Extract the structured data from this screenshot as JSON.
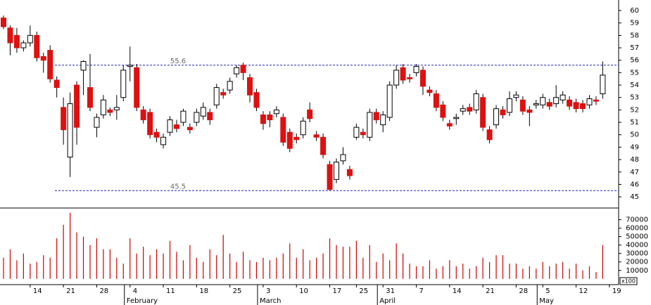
{
  "chart_data": {
    "type": "candlestick",
    "categories": [
      null,
      null,
      null,
      null,
      "14",
      null,
      null,
      null,
      null,
      "21",
      null,
      null,
      null,
      null,
      "28",
      null,
      null,
      null,
      null,
      "4",
      null,
      null,
      null,
      null,
      "11",
      null,
      null,
      null,
      null,
      "18",
      null,
      null,
      null,
      null,
      "25",
      null,
      null,
      null,
      null,
      "3",
      null,
      null,
      null,
      null,
      "10",
      null,
      null,
      null,
      null,
      "17",
      null,
      null,
      null,
      "25",
      null,
      null,
      null,
      "31",
      null,
      null,
      null,
      null,
      "7",
      null,
      null,
      null,
      null,
      "14",
      null,
      null,
      null,
      null,
      "21",
      null,
      null,
      null,
      null,
      "28",
      null,
      null,
      null,
      "5",
      null,
      null,
      null,
      null,
      "12",
      null,
      null,
      null,
      null,
      "19"
    ],
    "open": [
      59.4,
      58.6,
      58.0,
      57.0,
      57.4,
      58.0,
      56.3,
      56.8,
      54.4,
      52.2,
      48.2,
      54.0,
      55.2,
      53.8,
      50.6,
      51.6,
      52.0,
      52.0,
      53.0,
      55.5,
      55.4,
      52.0,
      51.8,
      50.2,
      49.2,
      50.2,
      50.8,
      51.0,
      50.6,
      51.0,
      51.5,
      51.8,
      52.4,
      53.4,
      53.6,
      54.9,
      55.6,
      54.6,
      53.4,
      51.6,
      51.6,
      51.7,
      51.4,
      50.2,
      49.8,
      50.0,
      52.0,
      50.0,
      49.8,
      47.6,
      46.4,
      47.9,
      47.2,
      49.8,
      50.2,
      49.8,
      51.8,
      50.8,
      51.4,
      54.0,
      55.4,
      54.6,
      55.0,
      55.2,
      53.6,
      53.3,
      52.4,
      50.9,
      51.3,
      51.9,
      52.2,
      52.0,
      53.0,
      50.4,
      50.8,
      52.0,
      51.8,
      53.0,
      52.8,
      52.0,
      52.4,
      52.4,
      52.6,
      52.5,
      52.8,
      52.8,
      52.6,
      52.5,
      52.4,
      52.8,
      53.3,
      null
    ],
    "high": [
      59.6,
      58.8,
      58.6,
      57.6,
      58.8,
      58.3,
      56.6,
      57.2,
      54.7,
      53.0,
      53.4,
      54.3,
      56.0,
      56.5,
      51.7,
      53.2,
      52.2,
      53.2,
      55.6,
      57.1,
      55.7,
      52.3,
      52.1,
      50.5,
      50.1,
      51.5,
      51.2,
      52.1,
      50.9,
      52.1,
      52.6,
      52.1,
      54.1,
      53.7,
      54.6,
      55.6,
      55.8,
      54.9,
      53.7,
      51.9,
      51.9,
      52.3,
      51.7,
      50.5,
      50.1,
      51.4,
      52.6,
      50.3,
      50.1,
      47.9,
      48.1,
      49.0,
      47.5,
      50.9,
      50.5,
      52.1,
      52.1,
      51.9,
      54.3,
      55.6,
      55.7,
      54.9,
      55.7,
      55.5,
      53.9,
      53.6,
      52.7,
      51.2,
      51.7,
      52.4,
      52.5,
      53.6,
      53.3,
      50.7,
      52.4,
      52.3,
      53.5,
      53.5,
      53.1,
      52.3,
      52.8,
      53.3,
      52.9,
      54.0,
      53.5,
      53.1,
      52.9,
      52.8,
      53.2,
      53.1,
      55.9,
      null
    ],
    "low": [
      58.5,
      56.4,
      56.6,
      56.7,
      57.1,
      55.9,
      55.0,
      54.2,
      53.0,
      49.2,
      46.6,
      49.2,
      53.2,
      51.9,
      49.8,
      51.3,
      51.5,
      51.2,
      52.7,
      54.3,
      51.9,
      50.9,
      49.7,
      49.4,
      48.9,
      49.9,
      50.2,
      50.7,
      50.1,
      50.7,
      51.2,
      50.8,
      52.1,
      52.9,
      53.3,
      54.6,
      54.4,
      52.6,
      51.9,
      50.4,
      50.6,
      51.4,
      49.1,
      48.6,
      49.3,
      49.7,
      51.0,
      49.5,
      48.1,
      45.5,
      46.1,
      47.6,
      46.4,
      49.6,
      49.7,
      49.5,
      50.9,
      50.2,
      51.1,
      53.7,
      54.1,
      54.2,
      54.7,
      53.2,
      53.1,
      51.9,
      51.1,
      50.4,
      50.8,
      51.6,
      51.6,
      51.7,
      50.3,
      49.3,
      50.5,
      51.3,
      51.5,
      52.7,
      51.6,
      50.7,
      52.1,
      52.1,
      52.0,
      52.2,
      52.5,
      52.0,
      51.8,
      51.8,
      52.1,
      52.4,
      52.9,
      null
    ],
    "close": [
      58.7,
      57.4,
      57.0,
      57.4,
      58.0,
      56.2,
      56.0,
      54.5,
      53.8,
      50.4,
      52.5,
      50.6,
      55.9,
      52.2,
      51.4,
      52.8,
      51.8,
      52.2,
      55.2,
      55.6,
      52.2,
      51.2,
      50.0,
      49.8,
      49.8,
      51.2,
      50.5,
      51.9,
      50.4,
      51.8,
      52.2,
      51.2,
      53.8,
      53.2,
      54.3,
      55.4,
      55.0,
      53.2,
      52.2,
      50.9,
      51.2,
      52.0,
      49.4,
      48.9,
      49.6,
      51.1,
      51.3,
      49.8,
      48.4,
      45.6,
      47.8,
      48.4,
      46.7,
      50.6,
      50.0,
      51.8,
      51.2,
      51.6,
      54.0,
      55.2,
      54.4,
      54.5,
      55.5,
      53.9,
      53.4,
      52.2,
      51.4,
      50.7,
      51.4,
      52.1,
      51.9,
      53.3,
      50.6,
      49.6,
      52.1,
      51.6,
      52.9,
      53.2,
      51.9,
      51.8,
      52.5,
      53.0,
      52.3,
      53.0,
      53.2,
      52.3,
      52.1,
      52.1,
      52.9,
      52.7,
      54.8,
      null
    ],
    "volume": [
      25000,
      35000,
      22000,
      30000,
      18000,
      20000,
      28000,
      25000,
      48000,
      64000,
      78000,
      55000,
      50000,
      40000,
      48000,
      35000,
      35000,
      25000,
      18000,
      48000,
      30000,
      38000,
      28000,
      35000,
      30000,
      45000,
      32000,
      22000,
      40000,
      25000,
      20000,
      35000,
      28000,
      52000,
      30000,
      20000,
      32000,
      22000,
      20000,
      25000,
      22000,
      25000,
      30000,
      42000,
      25000,
      35000,
      22000,
      25000,
      30000,
      48000,
      40000,
      38000,
      38000,
      45000,
      25000,
      40000,
      20000,
      30000,
      22000,
      42000,
      30000,
      18000,
      15000,
      15000,
      22000,
      12000,
      15000,
      22000,
      15000,
      18000,
      12000,
      15000,
      25000,
      20000,
      28000,
      28000,
      18000,
      18000,
      12000,
      15000,
      12000,
      20000,
      15000,
      18000,
      20000,
      12000,
      18000,
      10000,
      15000,
      8000,
      40000,
      null
    ],
    "ylim": [
      44.1,
      60.85
    ],
    "yticks": [
      45,
      46,
      47,
      48,
      49,
      50,
      51,
      52,
      53,
      54,
      55,
      56,
      57,
      58,
      59,
      60
    ],
    "volume_ylim": [
      -6000,
      83000
    ],
    "volume_yticks": [
      10000,
      20000,
      30000,
      40000,
      50000,
      60000,
      70000
    ],
    "volume_unit_label": "x100",
    "reference_lines": [
      55.6,
      45.5
    ],
    "months": [
      {
        "label": "February",
        "category": 19
      },
      {
        "label": "March",
        "category": 39
      },
      {
        "label": "April",
        "category": 57
      },
      {
        "label": "May",
        "category": 81
      }
    ],
    "up_color": "#ffffff",
    "down_color": "#dd1111",
    "volume_color": "#cc0000",
    "reference_color": "#2222bb"
  }
}
